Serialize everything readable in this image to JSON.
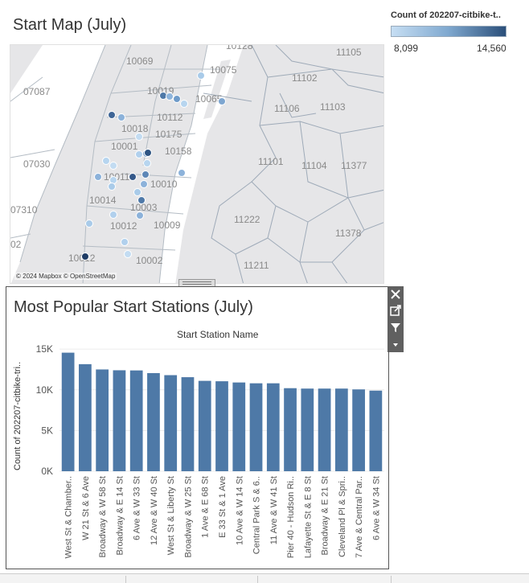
{
  "map": {
    "title": "Start Map (July)",
    "attribution": "© 2024 Mapbox © OpenStreetMap",
    "zip_labels": [
      "10128",
      "10069",
      "10075",
      "11105",
      "07087",
      "10019",
      "10065",
      "11102",
      "11106",
      "11103",
      "10112",
      "10018",
      "10175",
      "10001",
      "10158",
      "07030",
      "11101",
      "11104",
      "11377",
      "10011",
      "10010",
      "10014",
      "10003",
      "07310",
      "10012",
      "10009",
      "11222",
      "11378",
      "02",
      "10002",
      "11211",
      "10012"
    ],
    "legend": {
      "title": "Count of 202207-citbike-t..",
      "min": "8,099",
      "max": "14,560",
      "colors": [
        "#c6def3",
        "#2b4f7a"
      ]
    }
  },
  "chart": {
    "title": "Most Popular Start Stations (July)",
    "x_header": "Start Station Name",
    "y_title": "Count of 202207-citbike-tri..",
    "bar_color": "#4e79a7"
  },
  "toolbar": {
    "close_icon": "close-icon",
    "popout_icon": "popout-icon",
    "filter_icon": "filter-icon",
    "more_icon": "chevron-down-icon"
  },
  "chart_data": {
    "type": "bar",
    "title": "Most Popular Start Stations (July)",
    "xlabel": "Start Station Name",
    "ylabel": "Count of 202207-citbike-tri..",
    "ylim": [
      0,
      16000
    ],
    "yticks": [
      0,
      5000,
      10000,
      15000
    ],
    "ytick_labels": [
      "0K",
      "5K",
      "10K",
      "15K"
    ],
    "grid": true,
    "categories": [
      "West St & Chamber..",
      "W 21 St & 6 Ave",
      "Broadway & W 58 St",
      "Broadway & E 14 St",
      "6 Ave & W 33 St",
      "12 Ave & W 40 St",
      "West St & Liberty St",
      "Broadway & W 25 St",
      "1 Ave & E 68 St",
      "E 33 St & 1 Ave",
      "10 Ave & W 14 St",
      "Central Park S & 6..",
      "11 Ave & W 41 St",
      "Pier 40 - Hudson Ri..",
      "Lafayette St & E 8 St",
      "Broadway & E 21 St",
      "Cleveland Pl & Spri..",
      "7 Ave & Central Par..",
      "6 Ave & W 34 St"
    ],
    "values": [
      14560,
      13150,
      12500,
      12400,
      12380,
      12050,
      11800,
      11550,
      11100,
      11050,
      10900,
      10800,
      10800,
      10200,
      10150,
      10150,
      10150,
      10050,
      9900
    ]
  }
}
